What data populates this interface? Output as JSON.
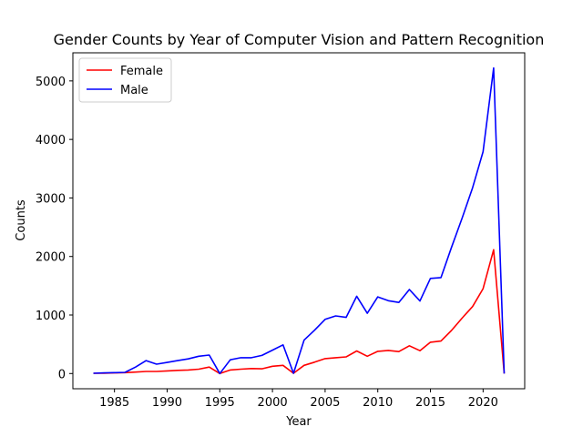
{
  "chart_data": {
    "type": "line",
    "title": "Gender Counts by Year of Computer Vision and Pattern Recognition",
    "xlabel": "Year",
    "ylabel": "Counts",
    "xlim": [
      1981.05,
      2023.95
    ],
    "ylim": [
      -260,
      5480
    ],
    "xticks": [
      1985,
      1990,
      1995,
      2000,
      2005,
      2010,
      2015,
      2020
    ],
    "yticks": [
      0,
      1000,
      2000,
      3000,
      4000,
      5000
    ],
    "grid": false,
    "legend_position": "top-left",
    "x": [
      1983,
      1984,
      1985,
      1986,
      1987,
      1988,
      1989,
      1990,
      1991,
      1992,
      1993,
      1994,
      1995,
      1996,
      1997,
      1998,
      1999,
      2000,
      2001,
      2002,
      2003,
      2004,
      2005,
      2006,
      2007,
      2008,
      2009,
      2010,
      2011,
      2012,
      2013,
      2014,
      2015,
      2016,
      2017,
      2018,
      2019,
      2020,
      2021,
      2022
    ],
    "series": [
      {
        "name": "Female",
        "color": "#ff0000",
        "values": [
          5,
          5,
          10,
          15,
          25,
          35,
          35,
          45,
          55,
          60,
          75,
          110,
          0,
          60,
          75,
          85,
          80,
          125,
          140,
          5,
          140,
          195,
          255,
          270,
          285,
          385,
          295,
          380,
          395,
          375,
          475,
          390,
          535,
          555,
          735,
          945,
          1145,
          1450,
          2115,
          0
        ]
      },
      {
        "name": "Male",
        "color": "#0000ff",
        "values": [
          5,
          10,
          15,
          20,
          110,
          220,
          160,
          190,
          220,
          250,
          295,
          315,
          0,
          235,
          270,
          270,
          310,
          400,
          490,
          5,
          570,
          740,
          925,
          985,
          960,
          1320,
          1030,
          1310,
          1245,
          1215,
          1435,
          1240,
          1625,
          1640,
          2155,
          2650,
          3175,
          3790,
          5220,
          0
        ]
      }
    ]
  }
}
